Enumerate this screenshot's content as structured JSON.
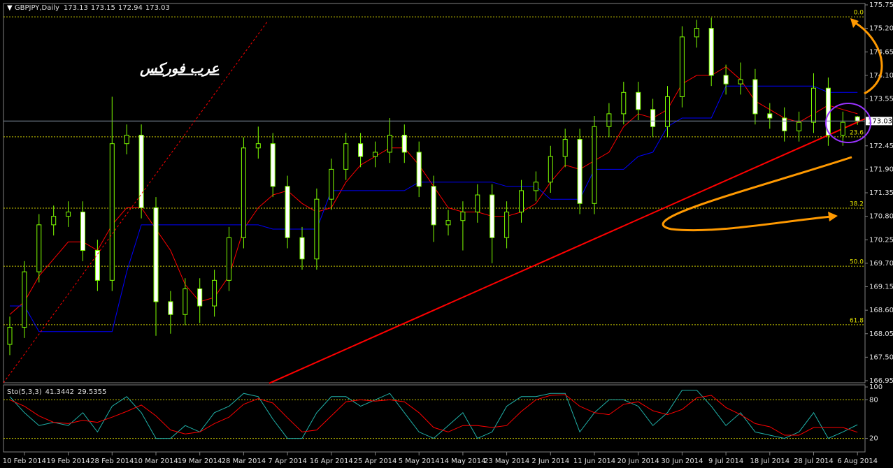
{
  "chart_data": {
    "type": "candlestick",
    "title": "GBPJPY,Daily",
    "annotation": "عرب فوركس",
    "categories": [
      null,
      "10 Feb 2014",
      null,
      null,
      "19 Feb 2014",
      null,
      null,
      "28 Feb 2014",
      null,
      null,
      "10 Mar 2014",
      null,
      null,
      "19 Mar 2014",
      null,
      null,
      "28 Mar 2014",
      null,
      null,
      "7 Apr 2014",
      null,
      null,
      "16 Apr 2014",
      null,
      null,
      "25 Apr 2014",
      null,
      null,
      "5 May 2014",
      null,
      null,
      "14 May 2014",
      null,
      null,
      "23 May 2014",
      null,
      null,
      "2 Jun 2014",
      null,
      null,
      "11 Jun 2014",
      null,
      null,
      "20 Jun 2014",
      null,
      null,
      "30 Jun 2014",
      null,
      null,
      "9 Jul 2014",
      null,
      null,
      "18 Jul 2014",
      null,
      null,
      "28 Jul 2014",
      null,
      null,
      "6 Aug 2014"
    ],
    "candles": [
      [
        167.8,
        168.45,
        167.55,
        168.2
      ],
      [
        168.2,
        169.75,
        167.95,
        169.5
      ],
      [
        169.5,
        170.85,
        169.25,
        170.6
      ],
      [
        170.6,
        171.05,
        170.35,
        170.8
      ],
      [
        170.8,
        171.15,
        170.55,
        170.9
      ],
      [
        170.9,
        171.15,
        169.75,
        170.0
      ],
      [
        170.0,
        170.25,
        169.05,
        169.3
      ],
      [
        169.3,
        173.6,
        169.05,
        172.5
      ],
      [
        172.5,
        172.95,
        172.25,
        172.7
      ],
      [
        172.7,
        172.95,
        170.75,
        171.0
      ],
      [
        171.0,
        171.25,
        168.0,
        168.8
      ],
      [
        168.8,
        169.05,
        168.05,
        168.5
      ],
      [
        168.5,
        169.35,
        168.25,
        169.1
      ],
      [
        169.1,
        169.35,
        168.3,
        168.7
      ],
      [
        168.7,
        169.55,
        168.45,
        169.3
      ],
      [
        169.3,
        170.55,
        169.05,
        170.3
      ],
      [
        170.3,
        172.65,
        170.05,
        172.4
      ],
      [
        172.4,
        172.9,
        172.15,
        172.5
      ],
      [
        172.5,
        172.75,
        171.25,
        171.5
      ],
      [
        171.5,
        171.75,
        170.05,
        170.3
      ],
      [
        170.3,
        170.55,
        169.55,
        169.8
      ],
      [
        169.8,
        171.45,
        169.55,
        171.2
      ],
      [
        171.2,
        172.15,
        170.95,
        171.9
      ],
      [
        171.9,
        172.75,
        171.65,
        172.5
      ],
      [
        172.5,
        172.75,
        171.95,
        172.2
      ],
      [
        172.2,
        172.55,
        171.95,
        172.3
      ],
      [
        172.3,
        173.1,
        172.05,
        172.7
      ],
      [
        172.7,
        172.95,
        172.05,
        172.3
      ],
      [
        172.3,
        172.55,
        171.25,
        171.5
      ],
      [
        171.5,
        171.75,
        170.2,
        170.6
      ],
      [
        170.6,
        170.95,
        170.35,
        170.7
      ],
      [
        170.7,
        171.15,
        170.0,
        170.9
      ],
      [
        170.9,
        171.55,
        170.65,
        171.3
      ],
      [
        171.3,
        171.55,
        169.7,
        170.3
      ],
      [
        170.3,
        171.15,
        170.05,
        170.9
      ],
      [
        170.9,
        171.65,
        170.65,
        171.4
      ],
      [
        171.4,
        171.85,
        171.15,
        171.6
      ],
      [
        171.6,
        172.45,
        171.35,
        172.2
      ],
      [
        172.2,
        172.85,
        171.95,
        172.6
      ],
      [
        172.6,
        172.85,
        170.85,
        171.1
      ],
      [
        171.1,
        173.15,
        170.85,
        172.9
      ],
      [
        172.9,
        173.45,
        172.65,
        173.2
      ],
      [
        173.2,
        173.95,
        172.95,
        173.7
      ],
      [
        173.7,
        173.95,
        173.05,
        173.3
      ],
      [
        173.3,
        173.55,
        172.65,
        172.9
      ],
      [
        172.9,
        173.85,
        172.65,
        173.6
      ],
      [
        173.6,
        175.25,
        173.35,
        175.0
      ],
      [
        175.0,
        175.4,
        174.75,
        175.2
      ],
      [
        175.2,
        175.45,
        173.85,
        174.1
      ],
      [
        174.1,
        174.35,
        173.65,
        173.9
      ],
      [
        173.9,
        174.4,
        173.65,
        174.0
      ],
      [
        174.0,
        174.25,
        172.95,
        173.2
      ],
      [
        173.2,
        173.45,
        172.85,
        173.1
      ],
      [
        173.1,
        173.35,
        172.55,
        172.8
      ],
      [
        172.8,
        173.25,
        172.55,
        173.0
      ],
      [
        173.0,
        174.15,
        172.75,
        173.8
      ],
      [
        173.8,
        174.05,
        172.45,
        172.7
      ],
      [
        172.7,
        173.25,
        172.45,
        173.0
      ],
      [
        173.13,
        173.15,
        172.94,
        173.03
      ]
    ],
    "candle_color": "#7fff00",
    "series": [
      {
        "name": "tenkan",
        "color": "#ff0000",
        "values": [
          168.5,
          168.8,
          169.4,
          169.8,
          170.2,
          170.2,
          170.0,
          170.6,
          171.0,
          171.0,
          170.5,
          170.0,
          169.2,
          168.8,
          168.9,
          169.4,
          170.5,
          171.0,
          171.3,
          171.4,
          171.1,
          170.9,
          171.0,
          171.6,
          172.0,
          172.2,
          172.4,
          172.4,
          172.0,
          171.5,
          171.0,
          170.9,
          170.9,
          170.8,
          170.8,
          170.9,
          171.1,
          171.6,
          172.0,
          171.9,
          172.1,
          172.3,
          172.9,
          173.2,
          173.1,
          173.3,
          173.9,
          174.1,
          174.1,
          174.3,
          174.0,
          173.5,
          173.3,
          173.1,
          173.0,
          173.2,
          173.4,
          173.3,
          173.2
        ]
      },
      {
        "name": "kijun",
        "color": "#0000ff",
        "values": [
          168.7,
          168.7,
          168.1,
          168.1,
          168.1,
          168.1,
          168.1,
          168.1,
          169.5,
          170.6,
          170.6,
          170.6,
          170.6,
          170.6,
          170.6,
          170.6,
          170.6,
          170.6,
          170.5,
          170.5,
          170.5,
          170.5,
          171.4,
          171.4,
          171.4,
          171.4,
          171.4,
          171.4,
          171.6,
          171.6,
          171.6,
          171.6,
          171.6,
          171.6,
          171.5,
          171.5,
          171.5,
          171.2,
          171.2,
          171.2,
          171.9,
          171.9,
          171.9,
          172.2,
          172.3,
          172.9,
          173.1,
          173.1,
          173.1,
          173.85,
          173.85,
          173.85,
          173.85,
          173.85,
          173.85,
          173.85,
          173.7,
          173.7,
          173.7
        ]
      }
    ],
    "ylim": [
      166.95,
      175.75
    ],
    "yticks": [
      175.75,
      {
        "value": 175.2,
        "label": "175.20"
      },
      174.65,
      {
        "value": 174.1,
        "label": "174.10"
      },
      173.55,
      172.45,
      {
        "value": 171.9,
        "label": "171.90"
      },
      171.35,
      {
        "value": 170.8,
        "label": "170.80"
      },
      170.25,
      {
        "value": 169.7,
        "label": "169.70"
      },
      169.15,
      {
        "value": 168.6,
        "label": "168.60"
      },
      168.05,
      {
        "value": 167.5,
        "label": "167.50"
      },
      166.95
    ],
    "fib_levels": [
      {
        "label": "0.0",
        "price": 175.47
      },
      {
        "label": "23.6",
        "price": 172.66
      },
      {
        "label": "38.2",
        "price": 170.99
      },
      {
        "label": "50.0",
        "price": 169.63
      },
      {
        "label": "61.8",
        "price": 168.26
      }
    ],
    "trendline": {
      "color": "#ff0000",
      "start": [
        17.75,
        166.89
      ],
      "end": [
        58.5,
        173.08
      ]
    },
    "stochastic": {
      "name": "Sto(5,3,3)",
      "ylim": [
        0,
        100
      ],
      "yticks": [
        100,
        80,
        20
      ],
      "levels": [
        80,
        20
      ],
      "series": [
        {
          "name": "main",
          "color": "#20b2aa",
          "values": [
            85,
            60,
            40,
            45,
            40,
            60,
            30,
            70,
            85,
            60,
            20,
            20,
            40,
            30,
            60,
            70,
            90,
            85,
            50,
            20,
            20,
            60,
            85,
            85,
            70,
            80,
            90,
            60,
            30,
            20,
            40,
            60,
            20,
            30,
            70,
            85,
            85,
            90,
            90,
            30,
            60,
            80,
            80,
            70,
            40,
            60,
            95,
            95,
            70,
            40,
            60,
            30,
            25,
            20,
            30,
            60,
            20,
            30,
            41.3442
          ]
        },
        {
          "name": "signal",
          "color": "#ff0000",
          "values": [
            80,
            70,
            55,
            45,
            43,
            48,
            45,
            53,
            62,
            72,
            55,
            33,
            27,
            30,
            43,
            53,
            73,
            82,
            75,
            52,
            30,
            33,
            55,
            77,
            80,
            78,
            80,
            77,
            60,
            37,
            30,
            40,
            40,
            37,
            40,
            62,
            80,
            87,
            88,
            70,
            60,
            57,
            73,
            77,
            63,
            57,
            65,
            83,
            87,
            68,
            57,
            43,
            38,
            25,
            25,
            37,
            37,
            37,
            29.5355
          ]
        }
      ]
    }
  }
}
